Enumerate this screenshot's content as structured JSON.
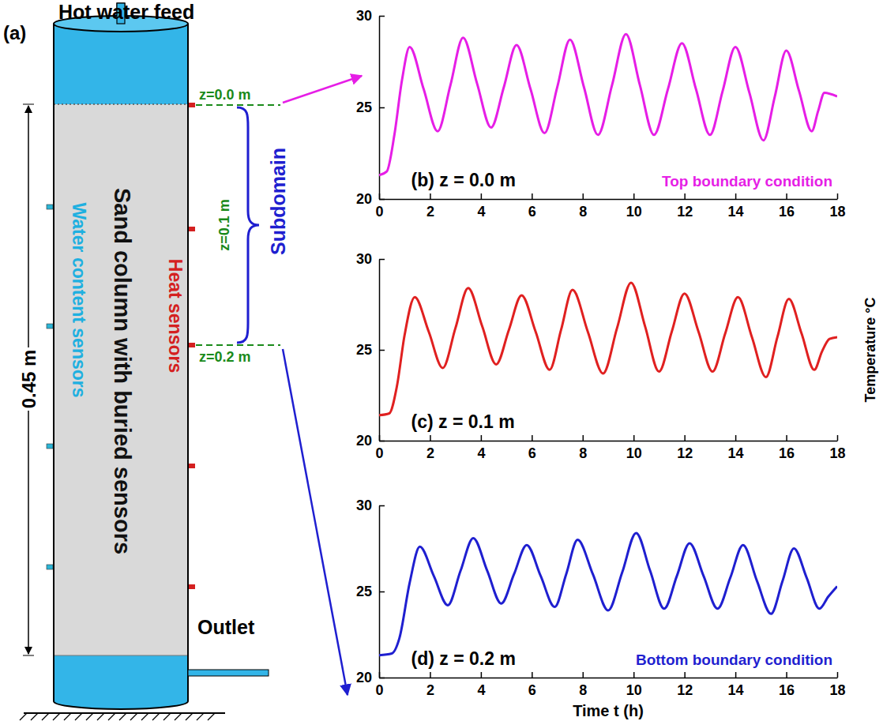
{
  "chart_data": [
    {
      "type": "line",
      "title": "(b) z = 0.0 m",
      "annotation": "Top boundary condition",
      "x": [
        0,
        0.3,
        0.6,
        0.9,
        1.2,
        1.75,
        2.3,
        2.8,
        3.3,
        3.85,
        4.4,
        4.9,
        5.4,
        5.95,
        6.5,
        7.0,
        7.5,
        8.05,
        8.6,
        9.15,
        9.7,
        10.25,
        10.8,
        11.35,
        11.9,
        12.45,
        13.0,
        13.5,
        14.0,
        14.55,
        15.1,
        15.55,
        16.0,
        16.5,
        17.0,
        17.25,
        17.5,
        18.0
      ],
      "series": [
        {
          "color": "#e61ee6",
          "values": [
            21.3,
            21.5,
            23.5,
            26.5,
            28.3,
            26.0,
            23.7,
            26.2,
            28.8,
            26.3,
            23.9,
            26.1,
            28.4,
            26.0,
            23.6,
            26.1,
            28.7,
            26.1,
            23.5,
            26.2,
            29.0,
            26.2,
            23.5,
            26.0,
            28.5,
            26.0,
            23.5,
            25.9,
            28.3,
            25.8,
            23.2,
            25.6,
            28.1,
            25.9,
            23.7,
            24.8,
            25.8,
            25.6
          ]
        }
      ],
      "xlim": [
        0,
        18
      ],
      "xticks": [
        0,
        2,
        4,
        6,
        8,
        10,
        12,
        14,
        16,
        18
      ],
      "ylim": [
        20,
        30
      ],
      "yticks": [
        20,
        25,
        30
      ]
    },
    {
      "type": "line",
      "title": "(c) z = 0.1 m",
      "ylabel": "Temperature °C",
      "x": [
        0,
        0.4,
        0.7,
        1.0,
        1.4,
        1.95,
        2.5,
        3.0,
        3.5,
        4.05,
        4.6,
        5.1,
        5.6,
        6.15,
        6.7,
        7.15,
        7.6,
        8.2,
        8.8,
        9.35,
        9.9,
        10.45,
        11.0,
        11.5,
        12.0,
        12.55,
        13.1,
        13.6,
        14.1,
        14.65,
        15.2,
        15.65,
        16.1,
        16.6,
        17.1,
        17.4,
        17.7,
        18.0
      ],
      "series": [
        {
          "color": "#e02020",
          "values": [
            21.4,
            21.5,
            23.0,
            25.8,
            27.9,
            26.0,
            24.0,
            26.2,
            28.4,
            26.3,
            24.2,
            26.1,
            28.0,
            26.0,
            23.9,
            26.1,
            28.3,
            26.0,
            23.7,
            26.2,
            28.7,
            26.3,
            23.8,
            26.0,
            28.1,
            26.0,
            23.8,
            25.9,
            27.9,
            25.7,
            23.5,
            25.7,
            27.8,
            25.9,
            23.9,
            24.9,
            25.6,
            25.7
          ]
        }
      ],
      "xlim": [
        0,
        18
      ],
      "xticks": [
        0,
        2,
        4,
        6,
        8,
        10,
        12,
        14,
        16,
        18
      ],
      "ylim": [
        20,
        30
      ],
      "yticks": [
        20,
        25,
        30
      ]
    },
    {
      "type": "line",
      "title": "(d) z = 0.2 m",
      "annotation": "Bottom boundary condition",
      "xlabel": "Time t (h)",
      "x": [
        0,
        0.5,
        0.8,
        1.2,
        1.6,
        2.15,
        2.7,
        3.2,
        3.7,
        4.25,
        4.8,
        5.3,
        5.8,
        6.35,
        6.9,
        7.35,
        7.8,
        8.4,
        9.0,
        9.55,
        10.1,
        10.65,
        11.2,
        11.7,
        12.2,
        12.75,
        13.3,
        13.8,
        14.3,
        14.85,
        15.4,
        15.85,
        16.3,
        16.8,
        17.3,
        17.65,
        18.0
      ],
      "series": [
        {
          "color": "#1f1fd0",
          "values": [
            21.3,
            21.4,
            22.3,
            25.5,
            27.6,
            25.9,
            24.2,
            26.2,
            28.1,
            26.2,
            24.3,
            26.0,
            27.7,
            25.9,
            24.1,
            26.0,
            28.0,
            26.0,
            23.9,
            26.1,
            28.4,
            26.2,
            24.0,
            25.9,
            27.8,
            25.9,
            24.0,
            25.8,
            27.7,
            25.6,
            23.7,
            25.6,
            27.5,
            25.8,
            24.0,
            24.7,
            25.3
          ]
        }
      ],
      "xlim": [
        0,
        18
      ],
      "xticks": [
        0,
        2,
        4,
        6,
        8,
        10,
        12,
        14,
        16,
        18
      ],
      "ylim": [
        20,
        30
      ],
      "yticks": [
        20,
        25,
        30
      ]
    }
  ],
  "diagram": {
    "panel_label": "(a)",
    "feed": "Hot water feed",
    "column": "Sand column with buried sensors",
    "water_sensors": "Water content sensors",
    "heat_sensors": "Heat sensors",
    "height": "0.45 m",
    "outlet": "Outlet",
    "subdomain": "Subdomain",
    "depths": [
      "z=0.0 m",
      "z=0.1 m",
      "z=0.2 m"
    ]
  }
}
